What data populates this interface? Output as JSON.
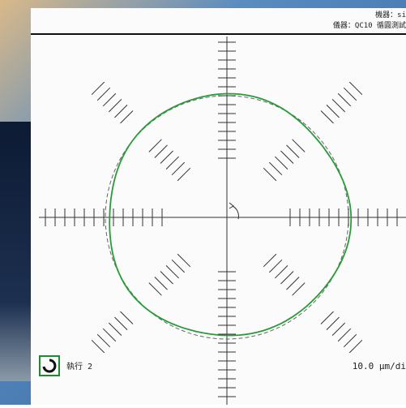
{
  "header": {
    "machine": "機器：si",
    "instrument": "儀器：QC10 循圓測試"
  },
  "footer": {
    "run": "執行 2",
    "scale": "10.0 µm/di"
  }
}
